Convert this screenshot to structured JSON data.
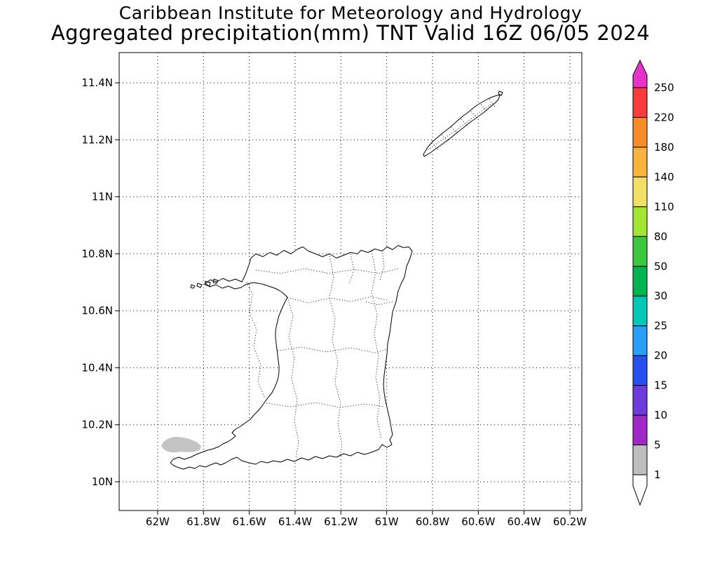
{
  "title": {
    "line1": "Caribbean Institute for Meteorology and Hydrology",
    "line2": "Aggregated precipitation(mm) TNT Valid 16Z 06/05 2024"
  },
  "map": {
    "x_axis": {
      "ticks": [
        {
          "label": "62W",
          "lon": 62.0
        },
        {
          "label": "61.8W",
          "lon": 61.8
        },
        {
          "label": "61.6W",
          "lon": 61.6
        },
        {
          "label": "61.4W",
          "lon": 61.4
        },
        {
          "label": "61.2W",
          "lon": 61.2
        },
        {
          "label": "61W",
          "lon": 61.0
        },
        {
          "label": "60.8W",
          "lon": 60.8
        },
        {
          "label": "60.6W",
          "lon": 60.6
        },
        {
          "label": "60.4W",
          "lon": 60.4
        },
        {
          "label": "60.2W",
          "lon": 60.2
        }
      ]
    },
    "y_axis": {
      "ticks": [
        {
          "label": "11.4N",
          "lat": 11.4
        },
        {
          "label": "11.2N",
          "lat": 11.2
        },
        {
          "label": "11N",
          "lat": 11.0
        },
        {
          "label": "10.8N",
          "lat": 10.8
        },
        {
          "label": "10.6N",
          "lat": 10.6
        },
        {
          "label": "10.4N",
          "lat": 10.4
        },
        {
          "label": "10.2N",
          "lat": 10.2
        },
        {
          "label": "10N",
          "lat": 10.0
        }
      ]
    },
    "regions": [
      "Trinidad",
      "Tobago"
    ]
  },
  "colorbar": {
    "unit": "mm",
    "labels_top_to_bottom": [
      "250",
      "220",
      "180",
      "140",
      "110",
      "80",
      "50",
      "30",
      "25",
      "20",
      "15",
      "10",
      "5",
      "1"
    ],
    "segment_colors_top_to_bottom": [
      "#fa3c3c",
      "#fa8c28",
      "#fab43c",
      "#f0e164",
      "#a0e632",
      "#3cc83c",
      "#00b450",
      "#00c8b4",
      "#28a0fa",
      "#2850f0",
      "#6e3cdc",
      "#a028c8",
      "#bebebe"
    ],
    "arrow_top_color": "#e632c8",
    "arrow_bottom_color": "#ffffff"
  },
  "chart_data": {
    "type": "map-precipitation",
    "title": "Aggregated precipitation(mm) TNT Valid 16Z 06/05 2024",
    "levels_mm": [
      1,
      5,
      10,
      15,
      20,
      25,
      30,
      50,
      80,
      110,
      140,
      180,
      220,
      250
    ],
    "lat_tick_labels": [
      "10N",
      "10.2N",
      "10.4N",
      "10.6N",
      "10.8N",
      "11N",
      "11.2N",
      "11.4N"
    ],
    "lon_tick_labels": [
      "62W",
      "61.8W",
      "61.6W",
      "61.4W",
      "61.2W",
      "61W",
      "60.8W",
      "60.6W",
      "60.4W",
      "60.2W"
    ],
    "shaded_areas": [
      {
        "lat": 10.13,
        "lon_w": 61.9,
        "value_range_mm": "1-5",
        "color": "#c3c3c3"
      }
    ]
  }
}
